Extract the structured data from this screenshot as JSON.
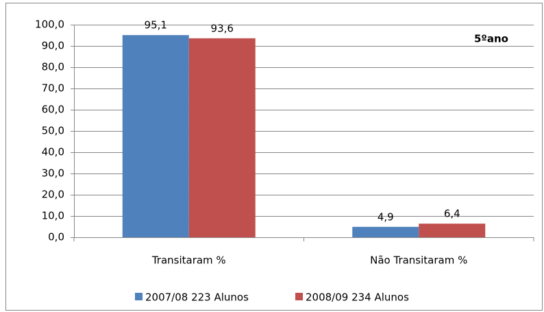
{
  "chart_data": {
    "type": "bar",
    "annotation": "5ºano",
    "categories": [
      "Transitaram %",
      "Não Transitaram %"
    ],
    "series": [
      {
        "name": "2007/08 223 Alunos",
        "color": "#4f81bd",
        "values": [
          95.1,
          4.9
        ],
        "value_labels": [
          "95,1",
          "4,9"
        ]
      },
      {
        "name": "2008/09 234 Alunos",
        "color": "#c0504d",
        "values": [
          93.6,
          6.4
        ],
        "value_labels": [
          "93,6",
          "6,4"
        ]
      }
    ],
    "ylim": [
      0,
      100
    ],
    "yticks": [
      {
        "value": 0,
        "label": "0,0"
      },
      {
        "value": 10,
        "label": "10,0"
      },
      {
        "value": 20,
        "label": "20,0"
      },
      {
        "value": 30,
        "label": "30,0"
      },
      {
        "value": 40,
        "label": "40,0"
      },
      {
        "value": 50,
        "label": "50,0"
      },
      {
        "value": 60,
        "label": "60,0"
      },
      {
        "value": 70,
        "label": "70,0"
      },
      {
        "value": 80,
        "label": "80,0"
      },
      {
        "value": 90,
        "label": "90,0"
      },
      {
        "value": 100,
        "label": "100,0"
      }
    ],
    "grid": true,
    "legend": "bottom"
  }
}
